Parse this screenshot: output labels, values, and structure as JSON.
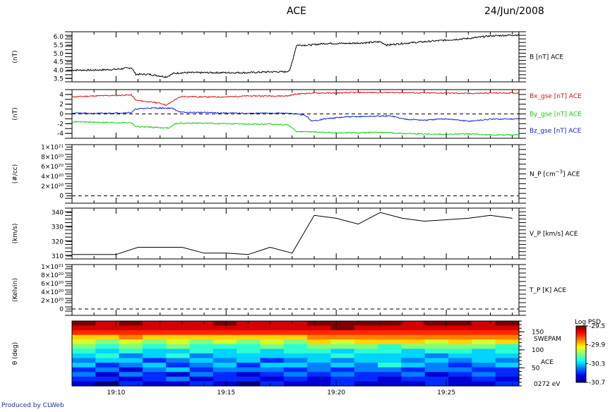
{
  "header": {
    "title": "ACE",
    "date": "24/Jun/2008"
  },
  "footer": {
    "credit": "Produced by CLWeb"
  },
  "colors": {
    "bx": "#dd1111",
    "by": "#11cc11",
    "bz": "#1122cc",
    "black": "#000000",
    "footer_text": "#1a2fb0"
  },
  "chart_data": [
    {
      "type": "line",
      "panel": "B",
      "ylabel": "(nT)",
      "series_label": "B [nT] ACE",
      "ylim": [
        3.3,
        6.3
      ],
      "yticks": [
        "3.5",
        "4.0",
        "4.5",
        "5.0",
        "5.5",
        "6.0"
      ],
      "ytick_values": [
        3.5,
        4.0,
        4.5,
        5.0,
        5.5,
        6.0
      ],
      "x": [
        8.0,
        9.0,
        10.0,
        10.7,
        10.9,
        11.5,
        12.0,
        12.3,
        12.6,
        13.0,
        14.0,
        15.0,
        16.0,
        17.0,
        17.7,
        17.9,
        18.2,
        18.8,
        19.5,
        20.5,
        21.5,
        22.0,
        22.3,
        23.0,
        24.0,
        25.0,
        26.0,
        27.0,
        28.0,
        28.3
      ],
      "values": [
        4.0,
        4.0,
        4.05,
        4.15,
        3.75,
        3.75,
        3.65,
        3.6,
        3.8,
        3.85,
        3.85,
        3.85,
        3.85,
        3.9,
        3.9,
        4.0,
        5.5,
        5.5,
        5.6,
        5.6,
        5.65,
        5.7,
        5.5,
        5.6,
        5.7,
        5.8,
        5.9,
        6.05,
        6.1,
        6.1
      ],
      "colors": [
        "#000000"
      ]
    },
    {
      "type": "line",
      "panel": "B_components",
      "ylabel": "(nT)",
      "ylim": [
        -5,
        5
      ],
      "yticks": [
        "-4",
        "-2",
        "0",
        "2",
        "4"
      ],
      "ytick_values": [
        -4,
        -2,
        0,
        2,
        4
      ],
      "zero_line": true,
      "series": [
        {
          "name": "Bx_gse [nT] ACE",
          "color": "#dd1111",
          "x": [
            8.0,
            9.0,
            10.0,
            10.7,
            10.9,
            11.5,
            12.0,
            12.3,
            12.7,
            13.0,
            14.0,
            15.0,
            16.0,
            17.0,
            17.8,
            18.2,
            19.0,
            20.0,
            21.0,
            22.0,
            23.0,
            24.0,
            25.0,
            26.0,
            27.0,
            28.3
          ],
          "values": [
            3.5,
            3.7,
            3.8,
            3.9,
            2.8,
            2.5,
            2.2,
            1.8,
            3.0,
            3.6,
            3.5,
            3.5,
            3.7,
            3.7,
            3.7,
            4.1,
            4.3,
            4.3,
            4.4,
            4.4,
            4.4,
            4.3,
            4.3,
            4.2,
            4.3,
            4.3
          ]
        },
        {
          "name": "By_gse [nT] ACE",
          "color": "#11cc11",
          "x": [
            8.0,
            9.0,
            10.0,
            10.7,
            10.9,
            11.5,
            12.0,
            12.4,
            12.7,
            13.0,
            14.0,
            15.0,
            16.0,
            17.0,
            17.8,
            18.2,
            19.0,
            20.0,
            21.0,
            22.0,
            23.0,
            24.0,
            25.0,
            26.0,
            27.0,
            28.3
          ],
          "values": [
            -1.6,
            -1.7,
            -1.8,
            -1.8,
            -2.6,
            -2.7,
            -2.8,
            -2.9,
            -2.0,
            -1.9,
            -1.9,
            -2.0,
            -2.1,
            -2.1,
            -2.2,
            -3.6,
            -3.7,
            -3.9,
            -3.9,
            -3.8,
            -4.0,
            -4.1,
            -4.2,
            -4.1,
            -4.3,
            -4.3
          ]
        },
        {
          "name": "Bz_gse [nT] ACE",
          "color": "#1122cc",
          "x": [
            8.0,
            9.0,
            10.0,
            10.7,
            10.9,
            11.5,
            12.0,
            12.5,
            13.0,
            14.0,
            15.0,
            16.0,
            17.0,
            18.0,
            18.6,
            18.9,
            19.5,
            20.5,
            21.5,
            22.5,
            23.0,
            24.0,
            25.0,
            26.0,
            27.0,
            28.3
          ],
          "values": [
            0.2,
            0.1,
            0.2,
            0.3,
            1.0,
            1.2,
            1.2,
            1.2,
            0.3,
            0.3,
            0.2,
            0.1,
            0.2,
            0.1,
            -0.3,
            -1.5,
            -1.0,
            -0.6,
            -0.5,
            -0.4,
            -1.0,
            -1.3,
            -1.0,
            -1.5,
            -1.1,
            -1.0
          ]
        }
      ]
    },
    {
      "type": "line",
      "panel": "N_P",
      "ylabel": "(#/cc)",
      "series_label": "N_P [cm^-3] ACE",
      "ylim": [
        -1.5e+20,
        1.05e+21
      ],
      "yticks": [
        "0",
        "2×10²⁰",
        "4×10²⁰",
        "6×10²⁰",
        "8×10²⁰",
        "1×10²¹"
      ],
      "ytick_values": [
        0,
        2e+20,
        4e+20,
        6e+20,
        8e+20,
        1e+21
      ],
      "zero_line": true,
      "values": [],
      "colors": [
        "#000000"
      ]
    },
    {
      "type": "line",
      "panel": "V_P",
      "ylabel": "(km/s)",
      "series_label": "V_P [km/s] ACE",
      "ylim": [
        308,
        343
      ],
      "yticks": [
        "310",
        "320",
        "330",
        "340"
      ],
      "ytick_values": [
        310,
        320,
        330,
        340
      ],
      "x": [
        8.0,
        9.0,
        10.0,
        11.0,
        12.0,
        13.0,
        14.0,
        15.0,
        16.0,
        17.0,
        18.0,
        19.0,
        20.0,
        21.0,
        22.0,
        23.0,
        24.0,
        25.0,
        26.0,
        27.0,
        28.0
      ],
      "values": [
        311,
        311,
        311,
        316,
        316,
        316,
        312,
        312,
        311,
        316,
        312,
        338,
        336,
        332,
        340,
        336,
        334,
        335,
        336,
        338,
        336
      ],
      "colors": [
        "#000000"
      ]
    },
    {
      "type": "line",
      "panel": "T_P",
      "ylabel": "(Kelvin)",
      "series_label": "T_P [K] ACE",
      "ylim": [
        -1.5e+20,
        1.05e+21
      ],
      "yticks": [
        "0",
        "2×10²⁰",
        "4×10²⁰",
        "6×10²⁰",
        "8×10²⁰",
        "1×10²¹"
      ],
      "ytick_values": [
        0,
        2e+20,
        4e+20,
        6e+20,
        8e+20,
        1e+21
      ],
      "zero_line": true,
      "values": [],
      "colors": [
        "#000000"
      ]
    },
    {
      "type": "heatmap",
      "panel": "theta",
      "ylabel": "θ (deg)",
      "side_labels": [
        "SWEPAM",
        "ACE",
        "0272 eV"
      ],
      "yticks": [
        "150",
        "100",
        "50"
      ],
      "ytick_values": [
        150,
        100,
        50
      ],
      "ylim": [
        0,
        180
      ],
      "xlim": [
        8.0,
        28.3
      ],
      "xticks": [
        "19:10",
        "19:15",
        "19:20",
        "19:25"
      ],
      "xtick_values": [
        10,
        15,
        20,
        25
      ],
      "colorbar": {
        "title": "Log PSD",
        "ticks": [
          "-29.5",
          "-29.9",
          "-30.3",
          "-30.7"
        ],
        "tick_values": [
          -29.5,
          -29.9,
          -30.3,
          -30.7
        ],
        "range": [
          -30.7,
          -29.5
        ]
      },
      "columns": 19,
      "rows": 14,
      "values": [
        [
          -29.5,
          -29.6,
          -29.5,
          -29.6,
          -29.6,
          -29.6,
          -29.5,
          -29.6,
          -29.6,
          -29.6,
          -29.5,
          -29.5,
          -29.5,
          -29.5,
          -29.6,
          -29.5,
          -29.5,
          -29.6,
          -29.5
        ],
        [
          -29.6,
          -29.6,
          -29.6,
          -29.6,
          -29.6,
          -29.6,
          -29.6,
          -29.6,
          -29.6,
          -29.6,
          -29.6,
          -29.5,
          -29.6,
          -29.6,
          -29.6,
          -29.6,
          -29.6,
          -29.6,
          -29.6
        ],
        [
          -29.7,
          -29.7,
          -29.7,
          -29.7,
          -29.7,
          -29.7,
          -29.7,
          -29.7,
          -29.7,
          -29.7,
          -29.7,
          -29.7,
          -29.7,
          -29.7,
          -29.7,
          -29.7,
          -29.7,
          -29.7,
          -29.7
        ],
        [
          -29.9,
          -29.9,
          -29.8,
          -29.9,
          -29.9,
          -29.9,
          -29.9,
          -29.9,
          -29.9,
          -29.9,
          -29.8,
          -29.8,
          -29.8,
          -29.8,
          -29.8,
          -29.8,
          -29.8,
          -29.8,
          -29.8
        ],
        [
          -30.0,
          -30.1,
          -30.0,
          -30.1,
          -30.0,
          -30.1,
          -30.0,
          -30.1,
          -30.0,
          -30.1,
          -29.9,
          -30.0,
          -29.9,
          -29.9,
          -29.9,
          -30.0,
          -29.9,
          -30.0,
          -29.9
        ],
        [
          -30.1,
          -30.2,
          -30.1,
          -30.2,
          -30.1,
          -30.2,
          -30.2,
          -30.2,
          -30.1,
          -30.2,
          -30.1,
          -30.1,
          -30.1,
          -30.2,
          -30.1,
          -30.1,
          -30.1,
          -30.1,
          -30.2
        ],
        [
          -30.2,
          -30.3,
          -30.2,
          -30.3,
          -30.3,
          -30.2,
          -30.3,
          -30.2,
          -30.3,
          -30.2,
          -30.2,
          -30.3,
          -30.2,
          -30.2,
          -30.3,
          -30.2,
          -30.2,
          -30.3,
          -30.2
        ],
        [
          -30.3,
          -30.2,
          -30.4,
          -30.3,
          -30.2,
          -30.4,
          -30.3,
          -30.3,
          -30.3,
          -30.3,
          -30.3,
          -30.2,
          -30.3,
          -30.3,
          -30.3,
          -30.4,
          -30.3,
          -30.3,
          -30.3
        ],
        [
          -30.4,
          -30.3,
          -30.3,
          -30.5,
          -30.4,
          -30.3,
          -30.4,
          -30.3,
          -30.5,
          -30.4,
          -30.3,
          -30.4,
          -30.3,
          -30.3,
          -30.4,
          -30.3,
          -30.4,
          -30.3,
          -30.4
        ],
        [
          -30.3,
          -30.5,
          -30.4,
          -30.3,
          -30.5,
          -30.4,
          -30.3,
          -30.5,
          -30.3,
          -30.3,
          -30.4,
          -30.3,
          -30.4,
          -30.2,
          -30.3,
          -30.4,
          -30.5,
          -30.4,
          -30.3
        ],
        [
          -30.5,
          -30.4,
          -30.6,
          -30.4,
          -30.3,
          -30.5,
          -30.4,
          -30.4,
          -30.4,
          -30.5,
          -30.4,
          -30.5,
          -30.4,
          -30.4,
          -30.5,
          -30.4,
          -30.4,
          -30.5,
          -30.5
        ],
        [
          -30.4,
          -30.6,
          -30.4,
          -30.5,
          -30.6,
          -30.4,
          -30.5,
          -30.6,
          -30.5,
          -30.4,
          -30.5,
          -30.4,
          -30.5,
          -30.5,
          -30.4,
          -30.6,
          -30.5,
          -30.4,
          -30.5
        ],
        [
          -30.5,
          -30.5,
          -30.6,
          -30.5,
          -30.4,
          -30.6,
          -30.5,
          -30.5,
          -30.6,
          -30.5,
          -30.6,
          -30.5,
          -30.5,
          -30.6,
          -30.5,
          -30.5,
          -30.6,
          -30.5,
          -30.6
        ],
        [
          -30.6,
          -30.7,
          -30.5,
          -30.6,
          -30.6,
          -30.5,
          -30.6,
          -30.7,
          -30.5,
          -30.6,
          -30.6,
          -30.5,
          -30.6,
          -30.6,
          -30.6,
          -30.5,
          -30.6,
          -30.6,
          -30.5
        ]
      ]
    }
  ]
}
